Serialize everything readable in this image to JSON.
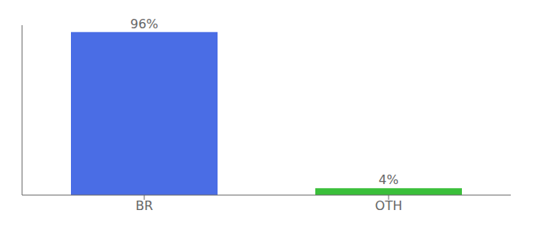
{
  "chart_data": {
    "type": "bar",
    "categories": [
      "BR",
      "OTH"
    ],
    "values": [
      96,
      4
    ],
    "value_labels": [
      "96%",
      "4%"
    ],
    "colors": [
      "#4a6de5",
      "#3abf3a"
    ],
    "ylim": [
      0,
      100
    ],
    "data_labels": true,
    "tick_labels": "x",
    "grid": false
  }
}
